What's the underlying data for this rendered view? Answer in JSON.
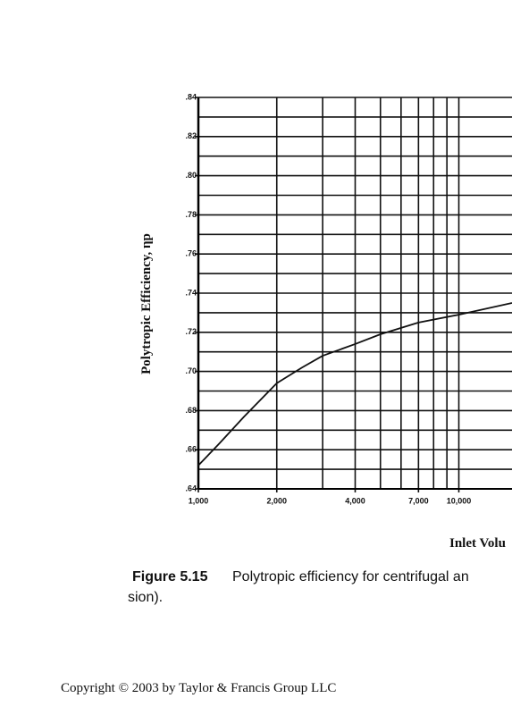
{
  "chart_data": {
    "type": "line",
    "y_label": "Polytropic Efficiency, ηp",
    "x_label": "Inlet Volu",
    "log_x": true,
    "x": [
      1000,
      1200,
      1500,
      2000,
      2500,
      3000,
      4000,
      5000,
      7000,
      10000,
      16000
    ],
    "series": [
      {
        "name": "Polytropic efficiency",
        "color": "#111111",
        "values": [
          0.652,
          0.663,
          0.677,
          0.694,
          0.702,
          0.708,
          0.714,
          0.719,
          0.725,
          0.729,
          0.735
        ]
      }
    ],
    "xlim": [
      1000,
      16000
    ],
    "xticks": [
      {
        "value": 1000,
        "label": "1,000"
      },
      {
        "value": 2000,
        "label": "2,000"
      },
      {
        "value": 4000,
        "label": "4,000"
      },
      {
        "value": 7000,
        "label": "7,000"
      },
      {
        "value": 10000,
        "label": "10,000"
      }
    ],
    "xminor": [
      3000,
      5000,
      6000,
      8000,
      9000
    ],
    "ylim": [
      0.64,
      0.84
    ],
    "yticks": [
      {
        "value": 0.64,
        "label": ".64"
      },
      {
        "value": 0.66,
        "label": ".66"
      },
      {
        "value": 0.68,
        "label": ".68"
      },
      {
        "value": 0.7,
        "label": ".70"
      },
      {
        "value": 0.72,
        "label": ".72"
      },
      {
        "value": 0.74,
        "label": ".74"
      },
      {
        "value": 0.76,
        "label": ".76"
      },
      {
        "value": 0.78,
        "label": ".78"
      },
      {
        "value": 0.8,
        "label": ".80"
      },
      {
        "value": 0.82,
        "label": ".82"
      },
      {
        "value": 0.84,
        "label": ".84"
      }
    ],
    "yminor": [
      0.65,
      0.67,
      0.69,
      0.71,
      0.73,
      0.75,
      0.77,
      0.79,
      0.81,
      0.83
    ],
    "grid": true
  },
  "caption": {
    "label": "Figure 5.15",
    "line1": "Polytropic efficiency for centrifugal an",
    "line2": "sion)."
  },
  "footer": {
    "copyright": "Copyright © 2003 by Taylor & Francis Group LLC"
  }
}
